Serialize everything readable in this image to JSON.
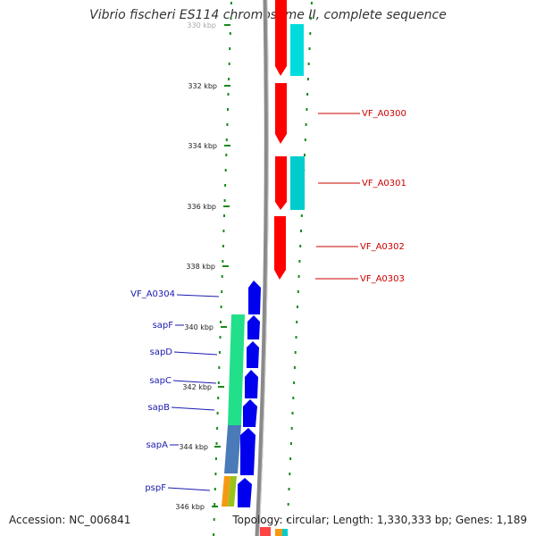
{
  "title": "Vibrio fischeri ES114 chromosome II, complete sequence",
  "footer": {
    "accession": "Accession: NC_006841",
    "summary": "Topology: circular; Length: 1,330,333 bp; Genes: 1,189"
  },
  "ruler": {
    "unit": "kbp",
    "ticks": [
      "330 kbp",
      "332 kbp",
      "334 kbp",
      "336 kbp",
      "338 kbp",
      "340 kbp",
      "342 kbp",
      "344 kbp",
      "346 kbp"
    ]
  },
  "genes": {
    "forward_labels": [
      "VF_A0300",
      "VF_A0301",
      "VF_A0302",
      "VF_A0303"
    ],
    "reverse_labels": [
      "VF_A0304",
      "sapF",
      "sapD",
      "sapC",
      "sapB",
      "sapA",
      "pspF"
    ]
  },
  "colors": {
    "forward_gene": "#ff0000",
    "reverse_gene": "#0000ee",
    "forward_label": "#cc0000",
    "reverse_label": "#1a1ab0",
    "cyan_feature": "#00dcdc",
    "green_feature": "#22e08a",
    "steelblue_feature": "#4a7ab8",
    "orange_feature": "#f59a10",
    "olive_feature": "#9bc21a",
    "backbone": "#8a8a8a",
    "tick": "#1b8a1b"
  }
}
